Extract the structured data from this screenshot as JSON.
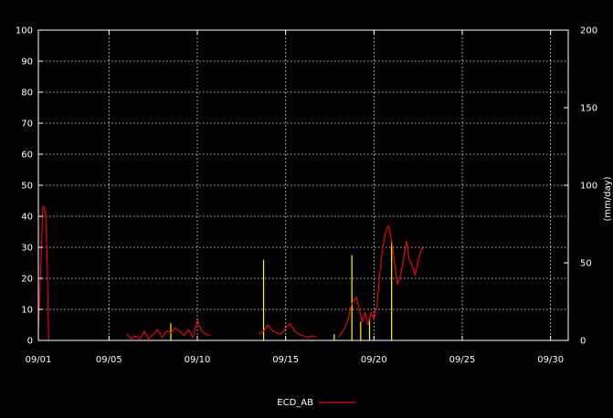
{
  "chart_data": {
    "type": "line",
    "x_axis": {
      "type": "date",
      "min": "2023-09-01",
      "max": "2023-10-01",
      "ticks": [
        {
          "value": "2023-09-01",
          "label": "09/01"
        },
        {
          "value": "2023-09-05",
          "label": "09/05"
        },
        {
          "value": "2023-09-10",
          "label": "09/10"
        },
        {
          "value": "2023-09-15",
          "label": "09/15"
        },
        {
          "value": "2023-09-20",
          "label": "09/20"
        },
        {
          "value": "2023-09-25",
          "label": "09/25"
        },
        {
          "value": "2023-09-30",
          "label": "09/30"
        }
      ]
    },
    "y_left": {
      "min": 0,
      "max": 100,
      "ticks": [
        "0",
        "10",
        "20",
        "30",
        "40",
        "50",
        "60",
        "70",
        "80",
        "90",
        "100"
      ]
    },
    "y_right": {
      "min": 0,
      "max": 200,
      "ticks": [
        "0",
        "50",
        "100",
        "150",
        "200"
      ],
      "label_partial": "(mm/day)"
    },
    "grid": true,
    "legend": {
      "placement": "bottom-center",
      "entries": [
        {
          "label": "ECD_AB",
          "color": "#ff0000"
        }
      ]
    },
    "colors": {
      "background": "#000000",
      "axes": "#ffffff",
      "grid": "#ffffff",
      "series": "#ff0000",
      "precip": "#ffff00"
    },
    "series": [
      {
        "name": "ECD_AB",
        "axis": "left",
        "segments": [
          [
            [
              "2023-09-01T00:00",
              3
            ],
            [
              "2023-09-01T02:00",
              15
            ],
            [
              "2023-09-01T04:00",
              28
            ],
            [
              "2023-09-01T06:00",
              43
            ],
            [
              "2023-09-01T08:00",
              43
            ],
            [
              "2023-09-01T10:00",
              40
            ],
            [
              "2023-09-01T12:00",
              25
            ],
            [
              "2023-09-01T14:00",
              0
            ]
          ],
          [
            [
              "2023-09-06T00:00",
              2
            ],
            [
              "2023-09-06T06:00",
              0.5
            ],
            [
              "2023-09-06T12:00",
              1.5
            ],
            [
              "2023-09-06T18:00",
              0.5
            ],
            [
              "2023-09-07T00:00",
              3
            ],
            [
              "2023-09-07T06:00",
              0.5
            ],
            [
              "2023-09-07T12:00",
              2
            ],
            [
              "2023-09-07T18:00",
              3.5
            ],
            [
              "2023-09-08T00:00",
              1
            ],
            [
              "2023-09-08T06:00",
              3
            ],
            [
              "2023-09-08T12:00",
              2.5
            ],
            [
              "2023-09-08T18:00",
              4
            ],
            [
              "2023-09-09T00:00",
              3
            ],
            [
              "2023-09-09T06:00",
              1.5
            ],
            [
              "2023-09-09T12:00",
              3.5
            ],
            [
              "2023-09-09T18:00",
              1
            ],
            [
              "2023-09-10T00:00",
              6.5
            ],
            [
              "2023-09-10T06:00",
              3
            ],
            [
              "2023-09-10T12:00",
              2
            ],
            [
              "2023-09-10T18:00",
              1.5
            ]
          ],
          [
            [
              "2023-09-13T12:00",
              2
            ],
            [
              "2023-09-13T18:00",
              3
            ],
            [
              "2023-09-14T00:00",
              5
            ],
            [
              "2023-09-14T06:00",
              3
            ],
            [
              "2023-09-14T12:00",
              2.5
            ],
            [
              "2023-09-14T18:00",
              2
            ],
            [
              "2023-09-15T00:00",
              4
            ],
            [
              "2023-09-15T06:00",
              5.5
            ],
            [
              "2023-09-15T12:00",
              3
            ],
            [
              "2023-09-15T18:00",
              2
            ],
            [
              "2023-09-16T00:00",
              1.5
            ],
            [
              "2023-09-16T06:00",
              1
            ],
            [
              "2023-09-16T12:00",
              1.5
            ],
            [
              "2023-09-16T18:00",
              1
            ]
          ],
          [
            [
              "2023-09-18T00:00",
              1
            ],
            [
              "2023-09-18T06:00",
              3
            ],
            [
              "2023-09-18T12:00",
              6
            ],
            [
              "2023-09-18T18:00",
              12
            ],
            [
              "2023-09-19T00:00",
              14
            ],
            [
              "2023-09-19T04:00",
              10
            ],
            [
              "2023-09-19T08:00",
              6
            ],
            [
              "2023-09-19T12:00",
              9
            ],
            [
              "2023-09-19T16:00",
              5
            ],
            [
              "2023-09-19T20:00",
              9
            ],
            [
              "2023-09-20T00:00",
              7
            ],
            [
              "2023-09-20T04:00",
              11
            ],
            [
              "2023-09-20T08:00",
              22
            ],
            [
              "2023-09-20T12:00",
              30
            ],
            [
              "2023-09-20T16:00",
              35
            ],
            [
              "2023-09-20T20:00",
              37
            ],
            [
              "2023-09-21T00:00",
              32
            ],
            [
              "2023-09-21T04:00",
              25
            ],
            [
              "2023-09-21T08:00",
              18
            ],
            [
              "2023-09-21T12:00",
              21
            ],
            [
              "2023-09-21T16:00",
              26
            ],
            [
              "2023-09-21T20:00",
              32
            ],
            [
              "2023-09-22T00:00",
              26
            ],
            [
              "2023-09-22T04:00",
              24
            ],
            [
              "2023-09-22T08:00",
              21
            ],
            [
              "2023-09-22T12:00",
              26
            ],
            [
              "2023-09-22T16:00",
              29
            ],
            [
              "2023-09-22T20:00",
              30
            ]
          ]
        ]
      },
      {
        "name": "",
        "type": "bar",
        "axis": "right",
        "points": [
          [
            "2023-09-08T12:00",
            11
          ],
          [
            "2023-09-13T18:00",
            52
          ],
          [
            "2023-09-17T18:00",
            4
          ],
          [
            "2023-09-18T18:00",
            55
          ],
          [
            "2023-09-19T06:00",
            12
          ],
          [
            "2023-09-19T18:00",
            14
          ],
          [
            "2023-09-21T00:00",
            64
          ]
        ]
      }
    ]
  }
}
